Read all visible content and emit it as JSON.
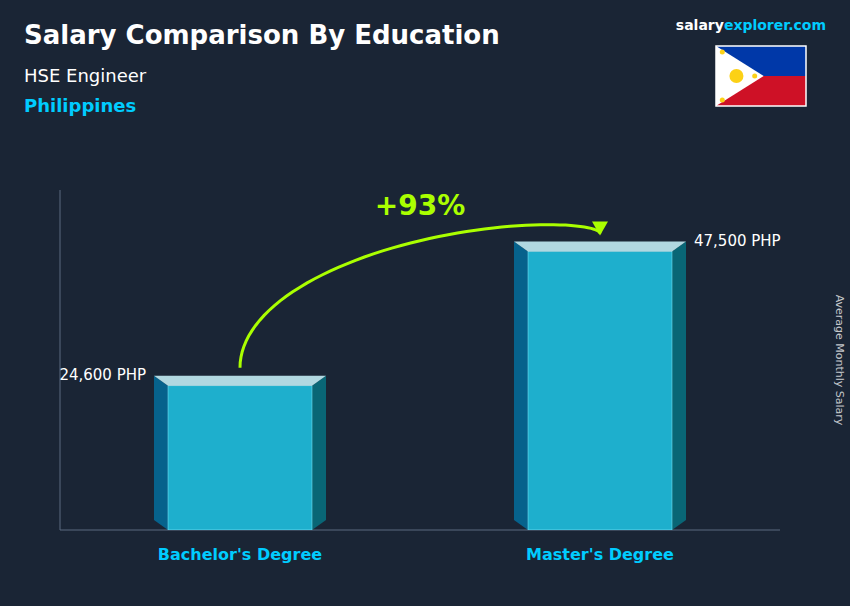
{
  "chart_data": {
    "type": "bar",
    "title": "Salary Comparison By Education",
    "subtitle": "HSE Engineer",
    "annotations": [
      "salary",
      "explorer.com",
      "Philippines",
      "+93%"
    ],
    "y_label": "Average Monthly Salary",
    "categories": [
      "Bachelor's Degree",
      "Master's Degree"
    ],
    "values": [
      24600,
      47500
    ],
    "value_labels": [
      "24,600 PHP",
      "47,500 PHP"
    ],
    "color": "#20c8e8",
    "ylim": [
      0,
      58000
    ],
    "data_labels": true,
    "tick_labels": "x",
    "grid": false
  }
}
